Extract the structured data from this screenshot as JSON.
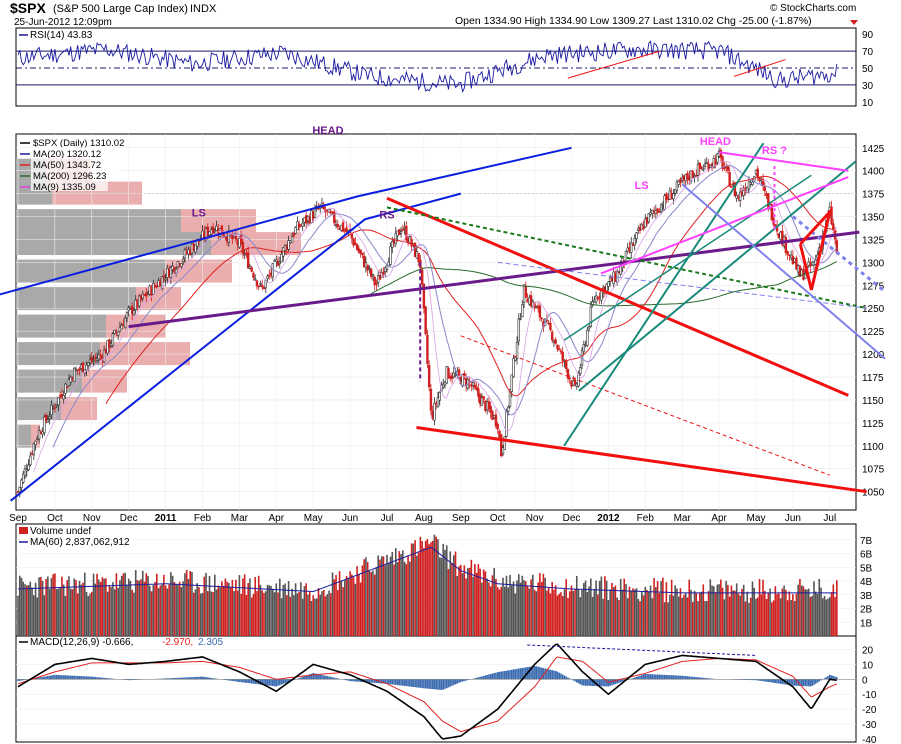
{
  "header": {
    "symbol": "$SPX",
    "name": "(S&P 500 Large Cap Index)",
    "exchange": "INDX",
    "date": "25-Jun-2012 12:09pm",
    "quote": "Open 1334.90   High 1334.90   Low 1309.27   Last 1310.02   Chg -25.00 (-1.87%)",
    "credit": "© StockCharts.com"
  },
  "colors": {
    "price_up": "#2a2a2a",
    "price_down": "#d02020",
    "ma20": "#1a1aa0",
    "ma50": "#e02020",
    "ma200": "#2a6a2a",
    "ma9": "#e040e0",
    "volume_profile_gray": "#a9a9a9",
    "volume_profile_red": "#e8a0a0",
    "trend_blue": "#0a1ee0",
    "trend_red": "#f01010",
    "trend_purple": "#6a1a8a",
    "trend_teal": "#1a8a7a",
    "trend_magenta": "#ff40ff",
    "trend_lavender": "#8080ee",
    "trend_green": "#1a7a1a"
  },
  "chart_data": [
    {
      "type": "line",
      "panel": "rsi",
      "legend": "RSI(14) 43.83",
      "ylim": [
        0,
        100
      ],
      "y_ticks": [
        10,
        30,
        50,
        70,
        90
      ],
      "reference_lines": [
        30,
        50,
        70
      ],
      "series": [
        {
          "name": "RSI(14)",
          "x_index": [
            0,
            60,
            120,
            180,
            240,
            300,
            360,
            420,
            480,
            520,
            557
          ],
          "values": [
            62,
            72,
            55,
            68,
            40,
            30,
            65,
            72,
            70,
            35,
            44
          ]
        }
      ]
    },
    {
      "type": "candlestick",
      "panel": "price",
      "legend": [
        "$SPX (Daily) 1310.02",
        "MA(20) 1320.12",
        "MA(50) 1343.72",
        "MA(200) 1296.23",
        "MA(9) 1335.09"
      ],
      "ylim": [
        1030,
        1440
      ],
      "y_ticks": [
        1050,
        1075,
        1100,
        1125,
        1150,
        1175,
        1200,
        1225,
        1250,
        1275,
        1300,
        1325,
        1350,
        1375,
        1400,
        1425
      ],
      "x_ticks": [
        "Sep",
        "Oct",
        "Nov",
        "Dec",
        "2011",
        "Feb",
        "Mar",
        "Apr",
        "May",
        "Jun",
        "Jul",
        "Aug",
        "Sep",
        "Oct",
        "Nov",
        "Dec",
        "2012",
        "Feb",
        "Mar",
        "Apr",
        "May",
        "Jun",
        "Jul"
      ],
      "close_keypoints": [
        {
          "month": 0.0,
          "value": 1050
        },
        {
          "month": 0.5,
          "value": 1110
        },
        {
          "month": 1.5,
          "value": 1180
        },
        {
          "month": 2.3,
          "value": 1200
        },
        {
          "month": 3.0,
          "value": 1245
        },
        {
          "month": 4.2,
          "value": 1295
        },
        {
          "month": 5.3,
          "value": 1340
        },
        {
          "month": 6.0,
          "value": 1320
        },
        {
          "month": 6.6,
          "value": 1270
        },
        {
          "month": 7.5,
          "value": 1335
        },
        {
          "month": 8.2,
          "value": 1360
        },
        {
          "month": 9.0,
          "value": 1330
        },
        {
          "month": 9.7,
          "value": 1275
        },
        {
          "month": 10.4,
          "value": 1340
        },
        {
          "month": 10.9,
          "value": 1300
        },
        {
          "month": 11.2,
          "value": 1130
        },
        {
          "month": 11.6,
          "value": 1180
        },
        {
          "month": 12.2,
          "value": 1170
        },
        {
          "month": 13.0,
          "value": 1125
        },
        {
          "month": 13.1,
          "value": 1090
        },
        {
          "month": 13.7,
          "value": 1270
        },
        {
          "month": 14.5,
          "value": 1220
        },
        {
          "month": 15.1,
          "value": 1160
        },
        {
          "month": 15.6,
          "value": 1260
        },
        {
          "month": 16.2,
          "value": 1285
        },
        {
          "month": 17.0,
          "value": 1345
        },
        {
          "month": 18.2,
          "value": 1395
        },
        {
          "month": 19.0,
          "value": 1415
        },
        {
          "month": 19.5,
          "value": 1370
        },
        {
          "month": 20.0,
          "value": 1400
        },
        {
          "month": 20.6,
          "value": 1335
        },
        {
          "month": 21.2,
          "value": 1285
        },
        {
          "month": 21.6,
          "value": 1300
        },
        {
          "month": 22.0,
          "value": 1355
        },
        {
          "month": 22.2,
          "value": 1310
        }
      ],
      "annotations": [
        {
          "text": "HEAD",
          "month": 8.4,
          "value": 1440,
          "color": "#6a1a8a"
        },
        {
          "text": "LS",
          "month": 4.9,
          "value": 1350,
          "color": "#6a1a8a"
        },
        {
          "text": "RS",
          "month": 10.0,
          "value": 1348,
          "color": "#6a1a8a"
        },
        {
          "text": "HEAD",
          "month": 18.9,
          "value": 1428,
          "color": "#ff40ff"
        },
        {
          "text": "LS",
          "month": 16.9,
          "value": 1380,
          "color": "#ff40ff"
        },
        {
          "text": "RS ?",
          "month": 20.5,
          "value": 1418,
          "color": "#ff40ff"
        }
      ],
      "volume_by_price": [
        {
          "level": 1345,
          "gray": 0.55,
          "red": 0.25
        },
        {
          "level": 1320,
          "gray": 0.65,
          "red": 0.3
        },
        {
          "level": 1290,
          "gray": 0.5,
          "red": 0.22
        },
        {
          "level": 1260,
          "gray": 0.4,
          "red": 0.15
        },
        {
          "level": 1230,
          "gray": 0.3,
          "red": 0.2
        },
        {
          "level": 1200,
          "gray": 0.28,
          "red": 0.3
        },
        {
          "level": 1170,
          "gray": 0.22,
          "red": 0.15
        },
        {
          "level": 1140,
          "gray": 0.15,
          "red": 0.12
        },
        {
          "level": 1110,
          "gray": 0.05,
          "red": 0.03
        },
        {
          "level": 1400,
          "gray": 0.1,
          "red": 0.15
        },
        {
          "level": 1375,
          "gray": 0.12,
          "red": 0.3
        }
      ],
      "trendlines": [
        {
          "color": "trend_blue",
          "points": [
            [
              -0.5,
              1265
            ],
            [
              9.2,
              1372
            ],
            [
              15.0,
              1425
            ]
          ],
          "width": 2
        },
        {
          "color": "trend_blue",
          "points": [
            [
              -0.2,
              1040
            ],
            [
              9.4,
              1347
            ],
            [
              12.0,
              1375
            ]
          ],
          "width": 2
        },
        {
          "color": "trend_purple",
          "points": [
            [
              3.0,
              1230
            ],
            [
              22.8,
              1333
            ]
          ],
          "width": 3
        },
        {
          "color": "trend_red",
          "points": [
            [
              10.0,
              1370
            ],
            [
              22.5,
              1155
            ]
          ],
          "width": 3
        },
        {
          "color": "trend_red",
          "points": [
            [
              10.8,
              1120
            ],
            [
              23.0,
              1050
            ]
          ],
          "width": 3
        },
        {
          "color": "trend_red",
          "points": [
            [
              12.0,
              1220
            ],
            [
              22.0,
              1068
            ]
          ],
          "width": 1,
          "dash": "4,3"
        },
        {
          "color": "trend_green",
          "points": [
            [
              10.0,
              1360
            ],
            [
              23.0,
              1250
            ]
          ],
          "width": 2,
          "dash": "4,3"
        },
        {
          "color": "trend_teal",
          "points": [
            [
              14.8,
              1100
            ],
            [
              20.2,
              1430
            ]
          ],
          "width": 2
        },
        {
          "color": "trend_teal",
          "points": [
            [
              15.2,
              1160
            ],
            [
              22.7,
              1410
            ]
          ],
          "width": 2
        },
        {
          "color": "trend_teal",
          "points": [
            [
              14.8,
              1215
            ],
            [
              21.5,
              1395
            ]
          ],
          "width": 1.5
        },
        {
          "color": "trend_magenta",
          "points": [
            [
              15.8,
              1288
            ],
            [
              22.5,
              1393
            ]
          ],
          "width": 2
        },
        {
          "color": "trend_magenta",
          "points": [
            [
              19.0,
              1420
            ],
            [
              22.5,
              1400
            ]
          ],
          "width": 2
        },
        {
          "color": "trend_lavender",
          "points": [
            [
              18.0,
              1385
            ],
            [
              23.5,
              1195
            ]
          ],
          "width": 2
        },
        {
          "color": "trend_lavender",
          "points": [
            [
              21.0,
              1350
            ],
            [
              23.5,
              1268
            ]
          ],
          "width": 3,
          "dash": "4,4"
        },
        {
          "color": "trend_lavender",
          "points": [
            [
              13.0,
              1300
            ],
            [
              23.0,
              1250
            ]
          ],
          "width": 1,
          "dash": "5,3"
        },
        {
          "color": "trend_red",
          "points": [
            [
              21.2,
              1320
            ],
            [
              22.0,
              1355
            ],
            [
              21.5,
              1270
            ],
            [
              21.2,
              1320
            ]
          ],
          "width": 3
        }
      ]
    },
    {
      "type": "bar",
      "panel": "volume",
      "legend": [
        "Volume undef",
        "MA(60) 2,837,062,912"
      ],
      "ylim": [
        0,
        8
      ],
      "y_ticks_labels": [
        "1B",
        "2B",
        "3B",
        "4B",
        "5B",
        "6B",
        "7B"
      ],
      "y_ticks": [
        1,
        2,
        3,
        4,
        5,
        6,
        7
      ],
      "volume_keypoints": [
        {
          "month": 0,
          "value": 3.6
        },
        {
          "month": 4,
          "value": 4.0
        },
        {
          "month": 8,
          "value": 3.4
        },
        {
          "month": 11.2,
          "value": 6.8
        },
        {
          "month": 12,
          "value": 5.0
        },
        {
          "month": 13,
          "value": 4.0
        },
        {
          "month": 15,
          "value": 3.6
        },
        {
          "month": 18,
          "value": 3.3
        },
        {
          "month": 22,
          "value": 3.3
        }
      ]
    },
    {
      "type": "line",
      "panel": "macd",
      "legend": [
        "MACD(12,26,9) -0.666,",
        "-2.970,",
        "2.305"
      ],
      "ylim": [
        -42,
        25
      ],
      "y_ticks": [
        -40,
        -30,
        -20,
        -10,
        0,
        10,
        20
      ],
      "series": [
        {
          "name": "MACD(12,26,9)",
          "month": [
            0,
            1,
            2,
            3,
            4,
            5,
            6,
            7,
            8,
            9,
            10,
            11,
            11.5,
            12,
            13,
            14,
            14.6,
            15.3,
            16,
            17,
            18,
            19,
            20,
            21,
            21.5,
            22,
            22.2
          ],
          "values": [
            -5,
            10,
            14,
            10,
            12,
            15,
            5,
            -8,
            10,
            3,
            -8,
            -25,
            -40,
            -38,
            -20,
            10,
            24,
            5,
            -10,
            10,
            16,
            14,
            12,
            -5,
            -20,
            0,
            -0.666
          ]
        },
        {
          "name": "signal",
          "month": [
            0,
            1,
            2,
            3,
            4,
            5,
            6,
            7,
            8,
            9,
            10,
            11,
            11.5,
            12,
            13,
            14,
            14.6,
            15.3,
            16,
            17,
            18,
            19,
            20,
            21,
            21.5,
            22,
            22.2
          ],
          "values": [
            -3,
            5,
            11,
            11,
            11,
            12,
            8,
            0,
            3,
            5,
            -3,
            -15,
            -28,
            -35,
            -28,
            -5,
            15,
            12,
            -2,
            4,
            12,
            14,
            13,
            2,
            -12,
            -5,
            -2.97
          ]
        }
      ]
    }
  ]
}
